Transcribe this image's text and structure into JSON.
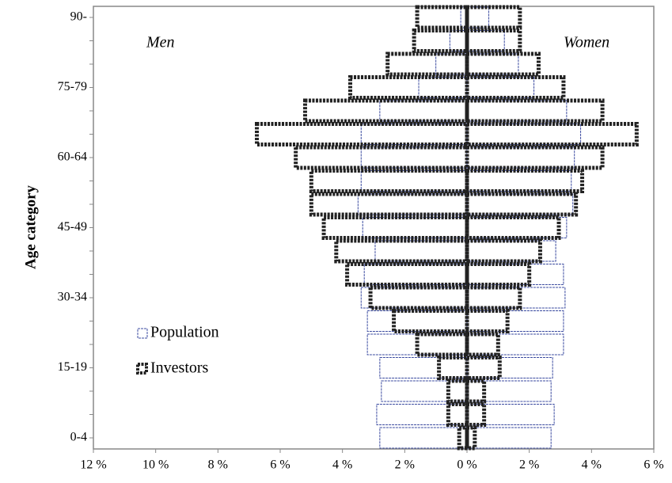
{
  "chart_data": {
    "type": "pyramid",
    "y_label": "Age category",
    "categories": [
      "0-4",
      null,
      null,
      "15-19",
      null,
      null,
      "30-34",
      null,
      null,
      "45-49",
      null,
      null,
      "60-64",
      null,
      null,
      "75-79",
      null,
      null,
      "90-"
    ],
    "annotations": [
      "Men",
      "Women"
    ],
    "series": [
      {
        "name": "Population",
        "color": "#3b4ba0",
        "men": [
          -2.8,
          -2.9,
          -2.75,
          -2.8,
          -3.2,
          -3.2,
          -3.4,
          -3.3,
          -2.95,
          -3.35,
          -3.5,
          -3.4,
          -3.4,
          -3.4,
          -2.8,
          -1.55,
          -1.0,
          -0.55,
          -0.2
        ],
        "women": [
          2.7,
          2.8,
          2.7,
          2.75,
          3.1,
          3.1,
          3.15,
          3.1,
          2.85,
          3.2,
          3.4,
          3.35,
          3.45,
          3.65,
          3.2,
          2.15,
          1.65,
          1.2,
          0.7
        ]
      },
      {
        "name": "Investors",
        "color": "#222222",
        "men": [
          -0.25,
          -0.6,
          -0.6,
          -0.9,
          -1.6,
          -2.35,
          -3.1,
          -3.85,
          -4.2,
          -4.6,
          -5.0,
          -5.0,
          -5.5,
          -6.75,
          -5.2,
          -3.75,
          -2.55,
          -1.7,
          -1.6
        ],
        "women": [
          0.25,
          0.55,
          0.55,
          1.05,
          1.0,
          1.3,
          1.7,
          2.0,
          2.35,
          2.95,
          3.5,
          3.7,
          4.35,
          5.45,
          4.35,
          3.1,
          2.3,
          1.7,
          1.7
        ]
      }
    ],
    "xlim": [
      -12,
      6
    ],
    "xticks": [
      {
        "value": -12,
        "label": "12 %"
      },
      {
        "value": -10,
        "label": "10 %"
      },
      {
        "value": -8,
        "label": "8 %"
      },
      {
        "value": -6,
        "label": "6 %"
      },
      {
        "value": -4,
        "label": "4 %"
      },
      {
        "value": -2,
        "label": "2 %"
      },
      {
        "value": 0,
        "label": "0 %"
      },
      {
        "value": 2,
        "label": "2 %"
      },
      {
        "value": 4,
        "label": "4 %"
      },
      {
        "value": 6,
        "label": "6 %"
      }
    ]
  }
}
